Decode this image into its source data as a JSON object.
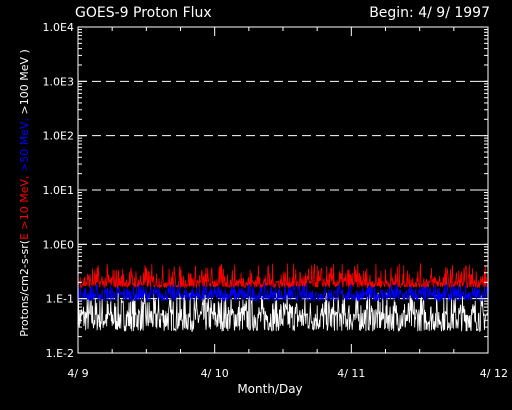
{
  "chart_data": {
    "type": "line",
    "title": "GOES-9 Proton Flux",
    "subtitle": "Begin: 4/ 9/ 1997",
    "xlabel": "Month/Day",
    "ylabel_parts": [
      {
        "text": "Protons/cm2-s-sr(",
        "color": "#ffffff"
      },
      {
        "text": "E >10 MeV, ",
        "color": "#ff0000"
      },
      {
        "text": ">50 MeV, ",
        "color": "#0000ff"
      },
      {
        "text": ">100 MeV )",
        "color": "#ffffff"
      }
    ],
    "y_scale": "log",
    "ylim": [
      0.01,
      10000
    ],
    "y_ticks": [
      {
        "value": 0.01,
        "label": "1.E-2"
      },
      {
        "value": 0.1,
        "label": "1.E-1"
      },
      {
        "value": 1,
        "label": "1.0E0"
      },
      {
        "value": 10,
        "label": "1.0E1"
      },
      {
        "value": 100,
        "label": "1.0E2"
      },
      {
        "value": 1000,
        "label": "1.0E3"
      },
      {
        "value": 10000,
        "label": "1.0E4"
      }
    ],
    "grid": "dashed horizontal at decades",
    "x_range_days": [
      0,
      3
    ],
    "x_ticks": [
      {
        "day": 0,
        "label": "4/ 9"
      },
      {
        "day": 1,
        "label": "4/ 10"
      },
      {
        "day": 2,
        "label": "4/ 11"
      },
      {
        "day": 3,
        "label": "4/ 12"
      }
    ],
    "series": [
      {
        "name": "E >10 MeV",
        "color": "#ff0000",
        "mean": 0.2,
        "noise_low": 0.16,
        "noise_high": 0.45
      },
      {
        "name": ">50 MeV",
        "color": "#0000ff",
        "mean": 0.12,
        "noise_low": 0.09,
        "noise_high": 0.2
      },
      {
        "name": ">100 MeV",
        "color": "#ffffff",
        "mean": 0.05,
        "noise_low": 0.025,
        "noise_high": 0.13
      }
    ]
  }
}
